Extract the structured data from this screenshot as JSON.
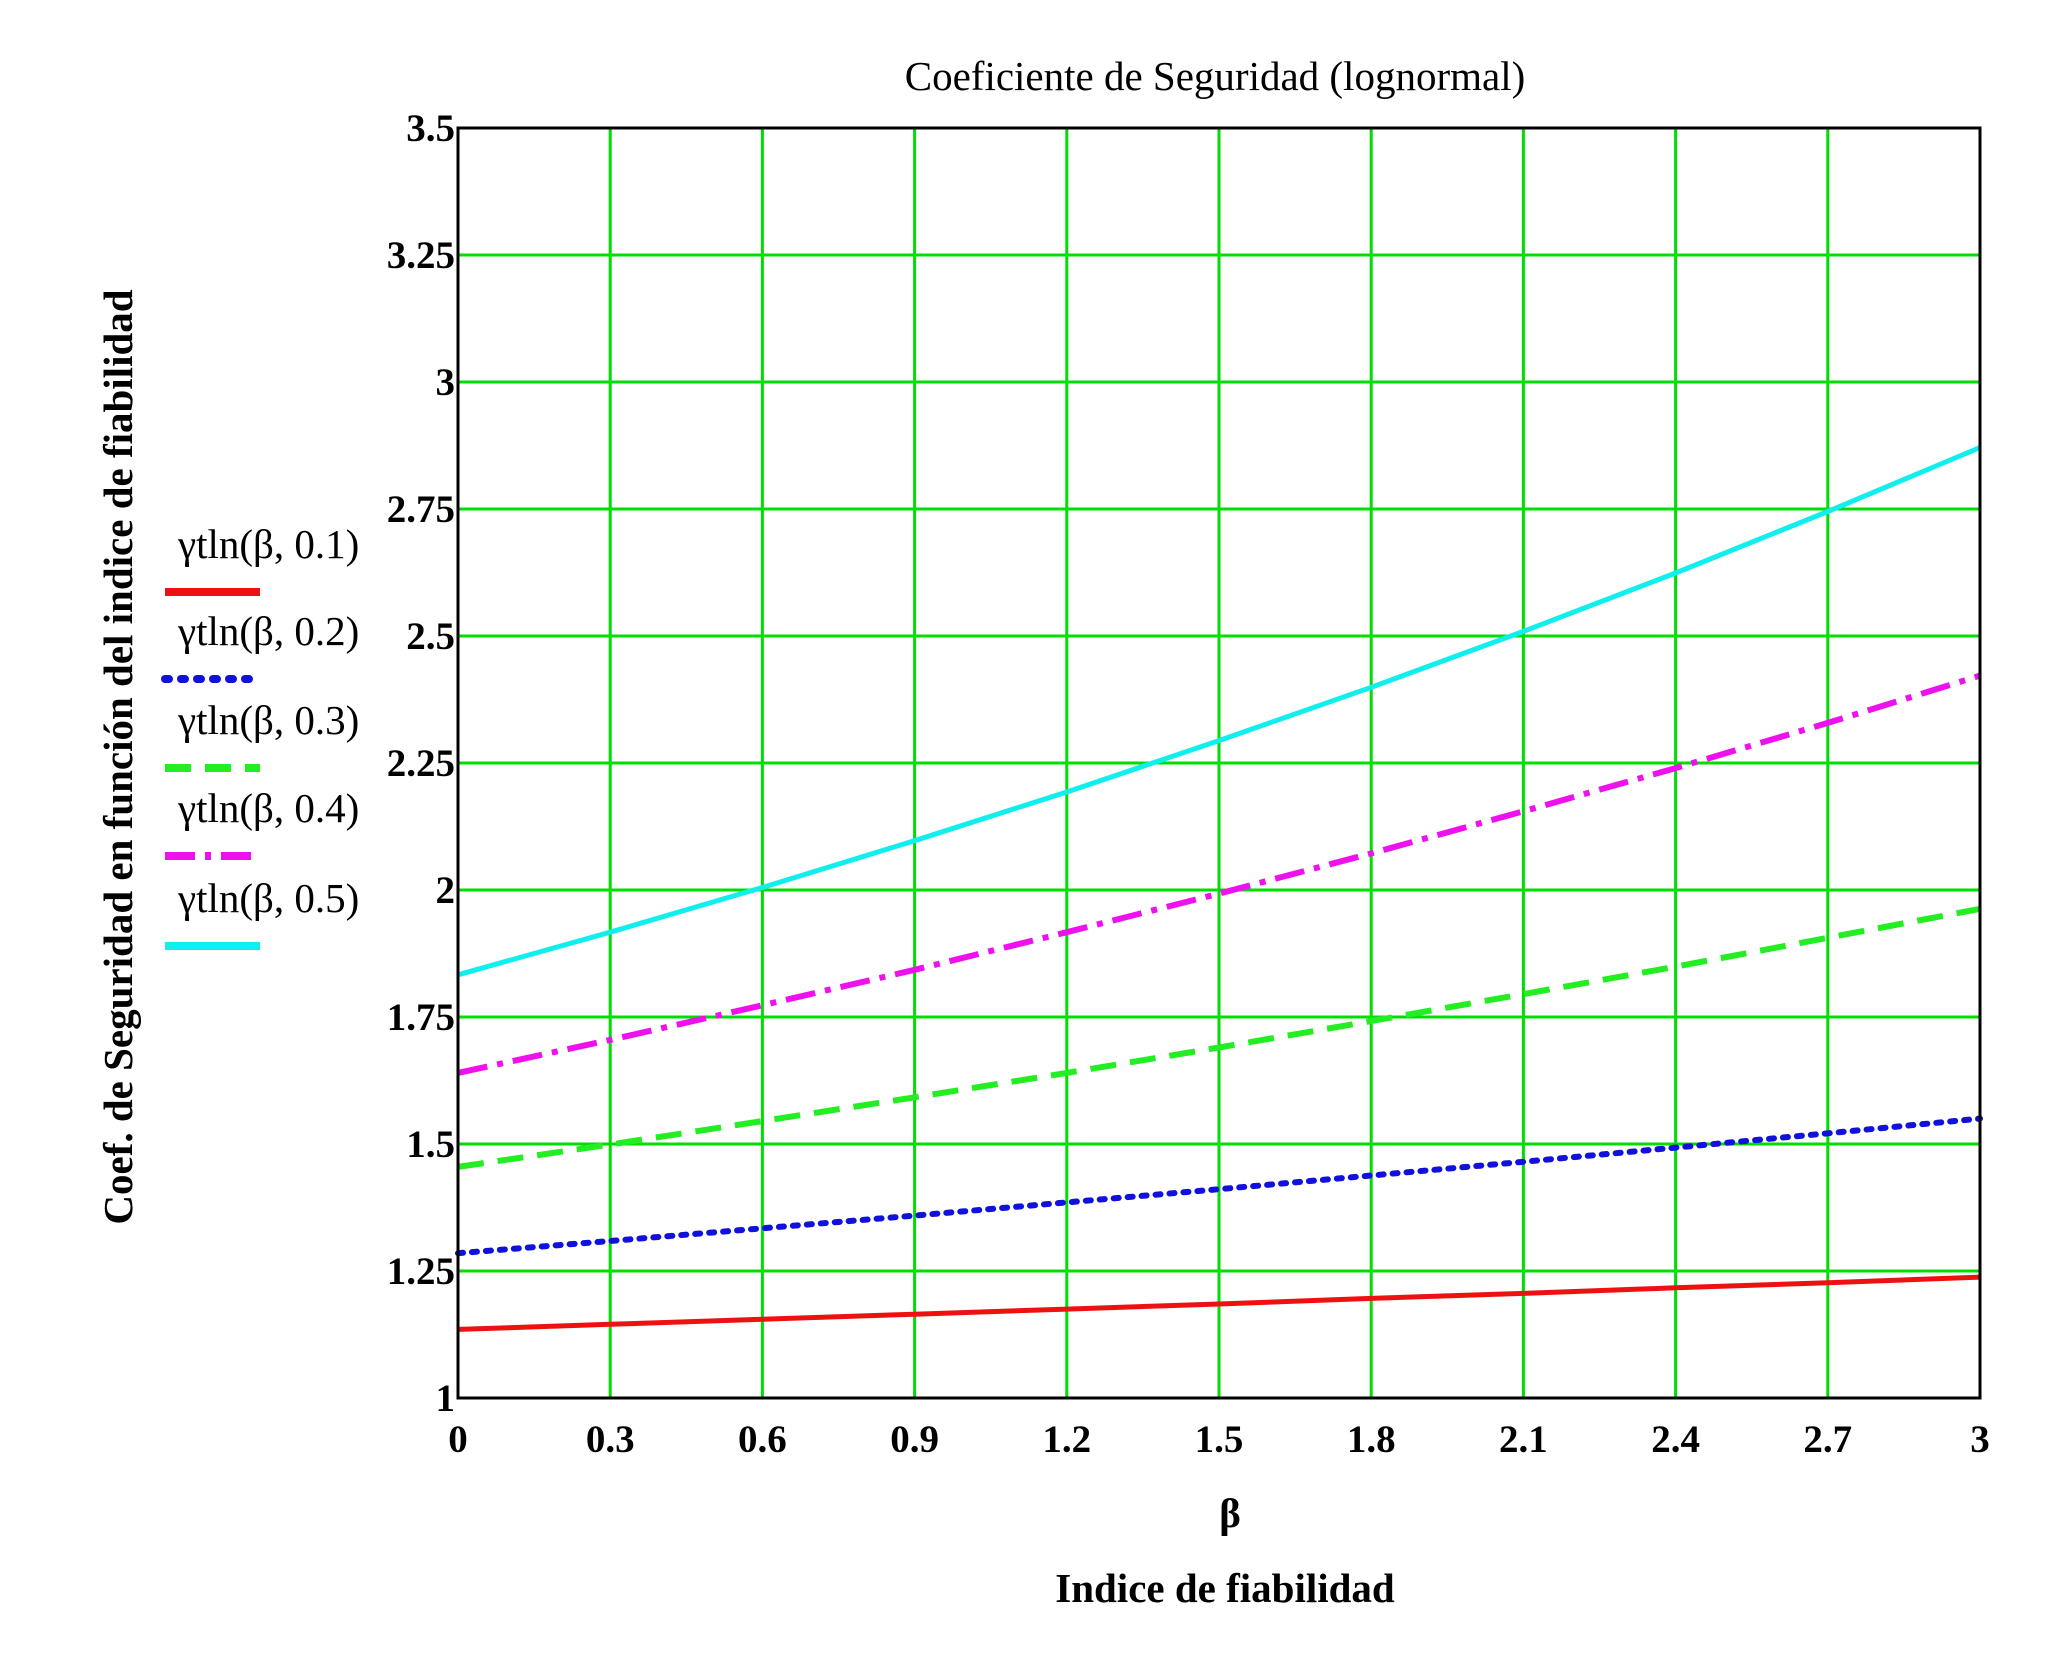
{
  "chart_data": {
    "type": "line",
    "title": "Coeficiente  de Seguridad  (lognormal)",
    "xlabel_symbol": "β",
    "xlabel": "Indice de fiabilidad",
    "ylabel": "Coef. de Seguridad en función del indice de fiabilidad",
    "xlim": [
      0,
      3
    ],
    "ylim": [
      1,
      3.5
    ],
    "grid": true,
    "legend_placement": "left",
    "x_ticks": [
      "0",
      "0.3",
      "0.6",
      "0.9",
      "1.2",
      "1.5",
      "1.8",
      "2.1",
      "2.4",
      "2.7",
      "3"
    ],
    "y_ticks": [
      "1",
      "1.25",
      "1.5",
      "1.75",
      "2",
      "2.25",
      "2.5",
      "2.75",
      "3",
      "3.25",
      "3.5"
    ],
    "colors": {
      "grid": "#00dd00",
      "frame": "#000000"
    },
    "x": [
      0,
      0.3,
      0.6,
      0.9,
      1.2,
      1.5,
      1.8,
      2.1,
      2.4,
      2.7,
      3.0
    ],
    "series": [
      {
        "name": "γtln(β, 0.1)",
        "color": "#ee1111",
        "style": "solid",
        "values": [
          1.135,
          1.145,
          1.155,
          1.165,
          1.175,
          1.185,
          1.196,
          1.206,
          1.217,
          1.227,
          1.238
        ]
      },
      {
        "name": "γtln(β, 0.2)",
        "color": "#1111dd",
        "style": "dotted",
        "values": [
          1.285,
          1.309,
          1.334,
          1.359,
          1.385,
          1.411,
          1.438,
          1.465,
          1.493,
          1.521,
          1.55
        ]
      },
      {
        "name": "γtln(β, 0.3)",
        "color": "#22ee22",
        "style": "dashed",
        "values": [
          1.455,
          1.499,
          1.545,
          1.592,
          1.64,
          1.69,
          1.742,
          1.795,
          1.849,
          1.906,
          1.963
        ]
      },
      {
        "name": "γtln(β, 0.4)",
        "color": "#ee11ee",
        "style": "dashdot",
        "values": [
          1.64,
          1.705,
          1.773,
          1.843,
          1.917,
          1.993,
          2.072,
          2.155,
          2.24,
          2.329,
          2.422
        ]
      },
      {
        "name": "γtln(β, 0.5)",
        "color": "#11eeee",
        "style": "solid",
        "values": [
          1.833,
          1.917,
          2.005,
          2.097,
          2.193,
          2.294,
          2.399,
          2.509,
          2.624,
          2.745,
          2.871
        ]
      }
    ]
  }
}
